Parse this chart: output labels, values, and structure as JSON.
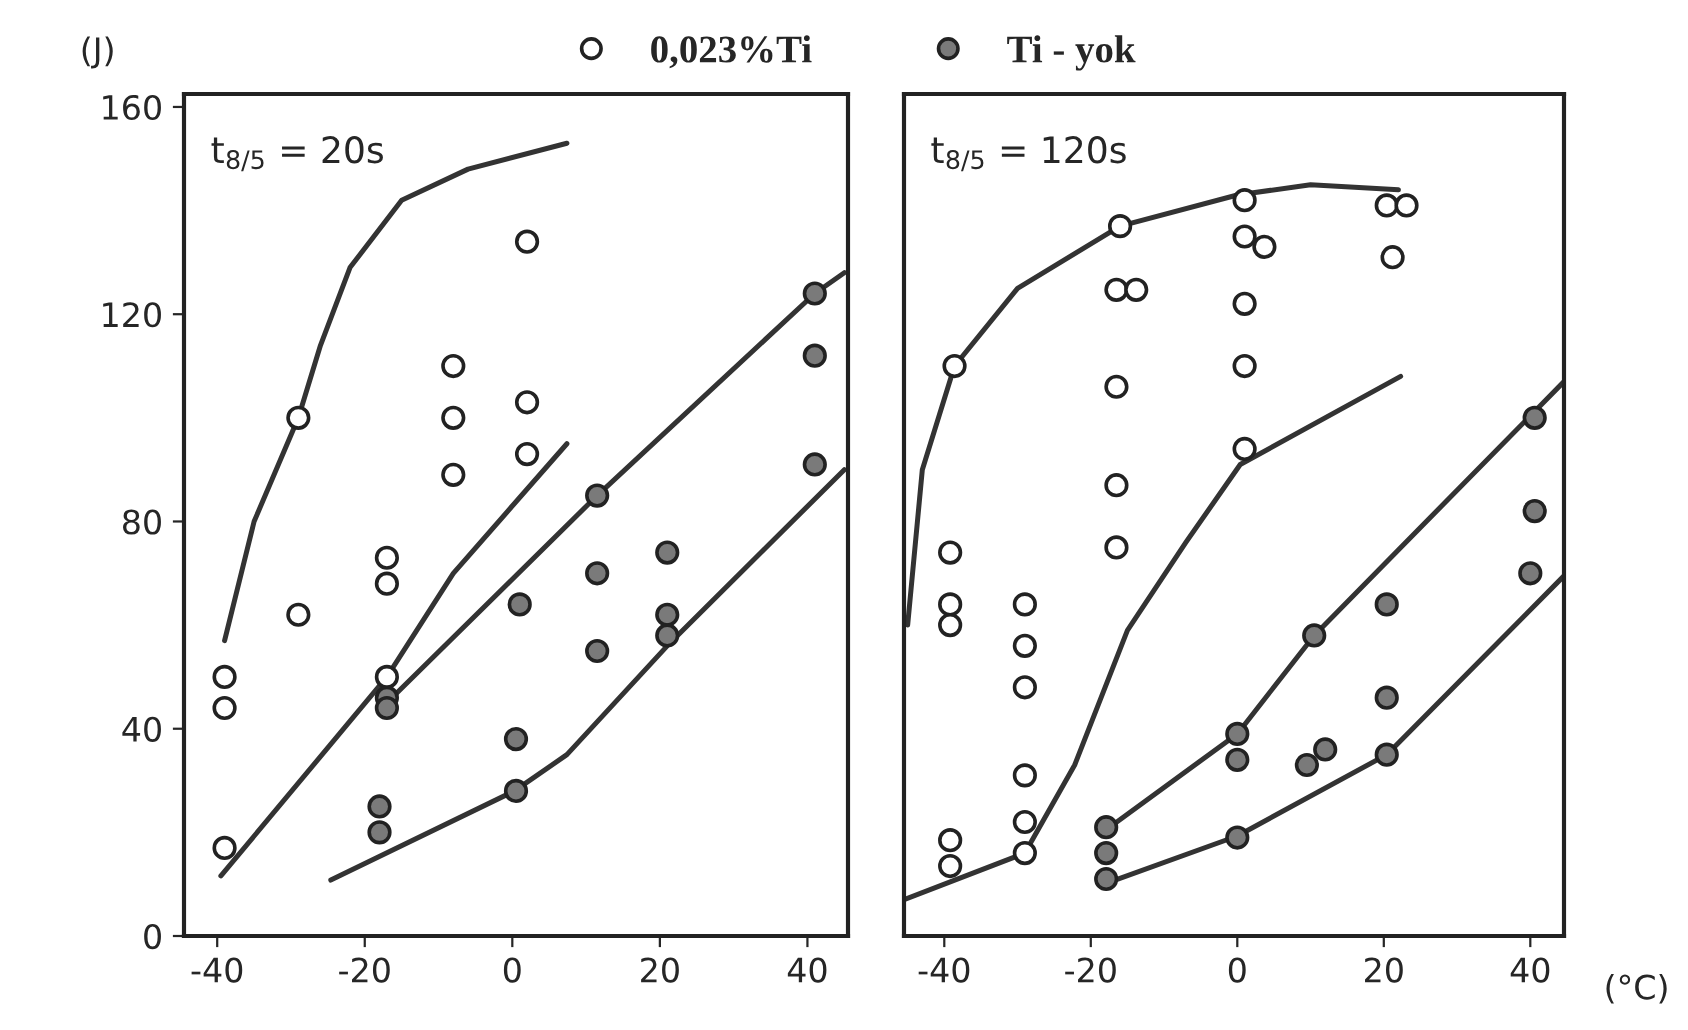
{
  "chart_data": [
    {
      "type": "scatter",
      "ylabel": "(J)",
      "legend": "top",
      "grid": false,
      "annotations": [
        "t$_{8/5}$ = 20s"
      ],
      "xlim": [
        -44.5,
        45.5
      ],
      "xticks": [
        -40,
        -20,
        0,
        20,
        40
      ],
      "ylim": [
        0,
        162.5
      ],
      "yticks": [
        0,
        40,
        80,
        120,
        160
      ],
      "series": [
        {
          "name": "0,023%Ti",
          "marker": "circle",
          "color": "#ffffff",
          "x": [
            -29,
            -8,
            -8,
            -8,
            2,
            2,
            2,
            -29,
            -39,
            -39,
            -39,
            -17,
            -17,
            -17
          ],
          "values": [
            100,
            110,
            100,
            89,
            134,
            103,
            93,
            62,
            50,
            44,
            17,
            73,
            68,
            50
          ]
        },
        {
          "name": "Ti - yok",
          "marker": "circle",
          "color": "#7a7a7a",
          "x": [
            41,
            41,
            41,
            11.5,
            -17,
            -17,
            -18,
            -18,
            1,
            0.5,
            0.5,
            11.5,
            11.5,
            21,
            21,
            21
          ],
          "values": [
            124,
            112,
            91,
            85,
            46,
            44,
            25,
            20,
            64,
            38,
            28,
            70,
            55,
            74,
            62,
            58
          ]
        },
        {
          "type": "line",
          "color": "#333333",
          "x": [
            -39,
            -35,
            -29,
            -26,
            -22,
            -15,
            -6,
            7.4
          ],
          "values": [
            57,
            80,
            100,
            114,
            129,
            142,
            148,
            153
          ]
        },
        {
          "type": "line",
          "color": "#333333",
          "x": [
            -39.5,
            -17,
            -8,
            7.4
          ],
          "values": [
            11.6,
            50,
            70,
            95
          ]
        },
        {
          "type": "line",
          "color": "#333333",
          "x": [
            -17,
            11.5,
            41,
            45
          ],
          "values": [
            45,
            85,
            124,
            128
          ]
        },
        {
          "type": "line",
          "color": "#333333",
          "x": [
            -24.6,
            0.3,
            7.4,
            21,
            45
          ],
          "values": [
            10.8,
            28,
            35,
            56,
            90
          ]
        }
      ]
    },
    {
      "type": "scatter",
      "xlabel": "(°C)",
      "tick_labels": "x",
      "grid": false,
      "annotations": [
        "t$_{8/5}$ = 120s"
      ],
      "xlim": [
        -45.5,
        44.6
      ],
      "xticks": [
        -40,
        -20,
        0,
        20,
        40
      ],
      "ylim": [
        0,
        162.5
      ],
      "yticks": [
        0,
        40,
        80,
        120,
        160
      ],
      "series": [
        {
          "marker": "circle",
          "color": "#ffffff",
          "x": [
            -38.6,
            -16,
            -16.5,
            -13.8,
            -16.5,
            -16.5,
            -16.5,
            1,
            1,
            3.7,
            1,
            1,
            1,
            20.4,
            23.1,
            21.2,
            -39.2,
            -39.2,
            -39.2,
            -39.2,
            -39.2,
            -29,
            -29,
            -29,
            -29,
            -29,
            -29
          ],
          "values": [
            110,
            137,
            124.7,
            124.7,
            106,
            87,
            75,
            142,
            135,
            133,
            122,
            110,
            94,
            141,
            141,
            131,
            74,
            64,
            60,
            18.5,
            13.5,
            64,
            56,
            48,
            31,
            22,
            16
          ]
        },
        {
          "marker": "circle",
          "color": "#7a7a7a",
          "x": [
            40.6,
            40.6,
            40,
            20.4,
            20.4,
            10.5,
            12,
            9.5,
            0,
            0,
            0,
            20.4,
            -17.9,
            -17.9,
            -17.9
          ],
          "values": [
            100,
            82,
            70,
            64,
            46,
            58,
            36,
            33,
            39,
            34,
            19,
            35,
            21,
            16,
            11
          ]
        },
        {
          "type": "line",
          "color": "#333333",
          "x": [
            -45,
            -43,
            -38.6,
            -30,
            -16,
            0,
            10,
            22
          ],
          "values": [
            60,
            90,
            110,
            125,
            137,
            143,
            145,
            144
          ]
        },
        {
          "type": "line",
          "color": "#333333",
          "x": [
            -45.5,
            -29,
            -22.2,
            -15,
            -7,
            0.4,
            22.3
          ],
          "values": [
            7,
            16,
            33,
            59,
            76,
            91,
            108
          ]
        },
        {
          "type": "line",
          "color": "#333333",
          "x": [
            -17.9,
            0,
            10.5,
            44.6
          ],
          "values": [
            20.5,
            39,
            58,
            107
          ]
        },
        {
          "type": "line",
          "color": "#333333",
          "x": [
            -18.2,
            0,
            20.4,
            44.6
          ],
          "values": [
            10,
            19.3,
            35,
            69.5
          ]
        }
      ]
    }
  ]
}
